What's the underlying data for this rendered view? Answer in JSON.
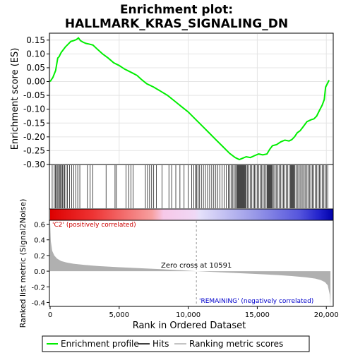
{
  "title_line1": "Enrichment plot:",
  "title_line2": "HALLMARK_KRAS_SIGNALING_DN",
  "colors": {
    "es_line": "#00ee00",
    "hits": "#000000",
    "metric_fill": "#b0b0b0",
    "pos_label": "#cc0000",
    "neg_label": "#0000cc",
    "zero_line": "#999999"
  },
  "chart_data": [
    {
      "type": "line",
      "name": "enrichment-score-panel",
      "ylabel": "Enrichment score (ES)",
      "ylim": [
        -0.3,
        0.175
      ],
      "yticks": [
        -0.3,
        -0.25,
        -0.2,
        -0.15,
        -0.1,
        -0.05,
        0.0,
        0.05,
        0.1,
        0.15
      ],
      "ytick_labels": [
        "-0.30",
        "-0.25",
        "-0.20",
        "-0.15",
        "-0.10",
        "-0.05",
        "0.00",
        "0.05",
        "0.10",
        "0.15"
      ],
      "xlim": [
        0,
        20500
      ],
      "grid": true,
      "series": [
        {
          "name": "Enrichment profile",
          "x": [
            0,
            200,
            400,
            550,
            650,
            800,
            950,
            1100,
            1300,
            1500,
            1700,
            1900,
            2050,
            2200,
            2400,
            2600,
            2800,
            3100,
            3400,
            3800,
            4200,
            4600,
            5000,
            5400,
            5800,
            6000,
            6300,
            6600,
            7000,
            7500,
            8000,
            8500,
            9000,
            9500,
            10000,
            10500,
            11000,
            11500,
            12000,
            12500,
            13000,
            13400,
            13700,
            13900,
            14200,
            14500,
            14800,
            15100,
            15400,
            15700,
            15900,
            16100,
            16400,
            16700,
            17000,
            17300,
            17500,
            17700,
            17900,
            18100,
            18300,
            18600,
            18900,
            19100,
            19300,
            19500,
            19700,
            19850,
            19950,
            20100,
            20200
          ],
          "y": [
            0.0,
            0.015,
            0.04,
            0.085,
            0.09,
            0.105,
            0.115,
            0.125,
            0.135,
            0.145,
            0.148,
            0.152,
            0.158,
            0.148,
            0.142,
            0.138,
            0.136,
            0.132,
            0.118,
            0.1,
            0.085,
            0.068,
            0.058,
            0.045,
            0.035,
            0.03,
            0.022,
            0.008,
            -0.008,
            -0.02,
            -0.035,
            -0.05,
            -0.07,
            -0.09,
            -0.11,
            -0.135,
            -0.16,
            -0.185,
            -0.21,
            -0.235,
            -0.26,
            -0.275,
            -0.282,
            -0.278,
            -0.272,
            -0.275,
            -0.268,
            -0.262,
            -0.265,
            -0.262,
            -0.245,
            -0.232,
            -0.228,
            -0.218,
            -0.212,
            -0.215,
            -0.21,
            -0.2,
            -0.185,
            -0.178,
            -0.165,
            -0.145,
            -0.138,
            -0.135,
            -0.125,
            -0.105,
            -0.085,
            -0.065,
            -0.02,
            -0.005,
            0.005
          ]
        }
      ]
    },
    {
      "type": "bar",
      "name": "hits-panel",
      "series": [
        {
          "name": "Hits"
        }
      ],
      "hit_positions": [
        150,
        300,
        380,
        450,
        520,
        600,
        680,
        750,
        830,
        900,
        980,
        1050,
        1150,
        1250,
        1400,
        1550,
        1700,
        1850,
        2000,
        2150,
        2700,
        2900,
        3100,
        4050,
        4700,
        4800,
        5500,
        5700,
        5850,
        6000,
        6900,
        7050,
        7200,
        7350,
        7500,
        7700,
        8100,
        8600,
        8800,
        9100,
        9400,
        9700,
        10000,
        10250,
        10400,
        10500,
        10600,
        10700,
        10800,
        10950,
        11100,
        11250,
        11400,
        11550,
        11700,
        11850,
        12000,
        12150,
        12300,
        12450,
        12600,
        12750,
        12900,
        13000,
        13100,
        13200,
        13300,
        13400,
        13500,
        13550,
        13600,
        13650,
        13700,
        13750,
        13800,
        13850,
        13900,
        13950,
        14000,
        14050,
        14100,
        14150,
        14200,
        14300,
        14400,
        14500,
        14600,
        14700,
        14800,
        14900,
        15000,
        15100,
        15200,
        15300,
        15400,
        15500,
        15600,
        15700,
        15750,
        15800,
        15850,
        15900,
        15950,
        16000,
        16050,
        16100,
        16200,
        16300,
        16400,
        16500,
        16600,
        16700,
        16800,
        16900,
        17000,
        17100,
        17200,
        17300,
        17400,
        17450,
        17500,
        17550,
        17600,
        17650,
        17700,
        17800,
        17900,
        18000,
        18100,
        18200,
        18300,
        18400,
        18500,
        18600,
        18700,
        18800,
        18900,
        19000,
        19100,
        19200,
        19300,
        19400,
        19500,
        19600,
        19700,
        19800,
        19900,
        20000,
        20100
      ]
    },
    {
      "type": "area",
      "name": "ranked-metric-panel",
      "xlabel": "Rank in Ordered Dataset",
      "ylabel": "Ranked list metric (Signal2Noise)",
      "ylim": [
        -0.45,
        0.65
      ],
      "yticks": [
        -0.4,
        -0.2,
        0.0,
        0.2,
        0.4,
        0.6
      ],
      "ytick_labels": [
        "-0.4",
        "-0.2",
        "0.0",
        "0.2",
        "0.4",
        "0.6"
      ],
      "xticks": [
        0,
        5000,
        10000,
        15000,
        20000
      ],
      "xtick_labels": [
        "0",
        "5,000",
        "10,000",
        "15,000",
        "20,000"
      ],
      "xlim": [
        0,
        20500
      ],
      "zero_cross": 10591,
      "zero_cross_label": "Zero cross at 10591",
      "pos_label": "'C2' (positively correlated)",
      "neg_label": "'REMAINING' (negatively correlated)",
      "series": [
        {
          "name": "Ranking metric scores",
          "x": [
            0,
            50,
            150,
            300,
            500,
            800,
            1200,
            1700,
            2500,
            3500,
            5000,
            6500,
            8000,
            9500,
            10591,
            12000,
            13500,
            15000,
            16500,
            17500,
            18500,
            19200,
            19600,
            19900,
            20100,
            20250,
            20300
          ],
          "y": [
            0.62,
            0.38,
            0.26,
            0.2,
            0.16,
            0.13,
            0.11,
            0.095,
            0.08,
            0.065,
            0.05,
            0.038,
            0.026,
            0.012,
            0.0,
            -0.012,
            -0.024,
            -0.036,
            -0.05,
            -0.062,
            -0.078,
            -0.095,
            -0.115,
            -0.14,
            -0.18,
            -0.3,
            -0.45
          ]
        }
      ]
    }
  ],
  "legend": {
    "items": [
      {
        "label": "Enrichment profile",
        "color": "#00ee00"
      },
      {
        "label": "Hits",
        "color": "#000000"
      },
      {
        "label": "Ranking metric scores",
        "color": "#b0b0b0"
      }
    ]
  }
}
